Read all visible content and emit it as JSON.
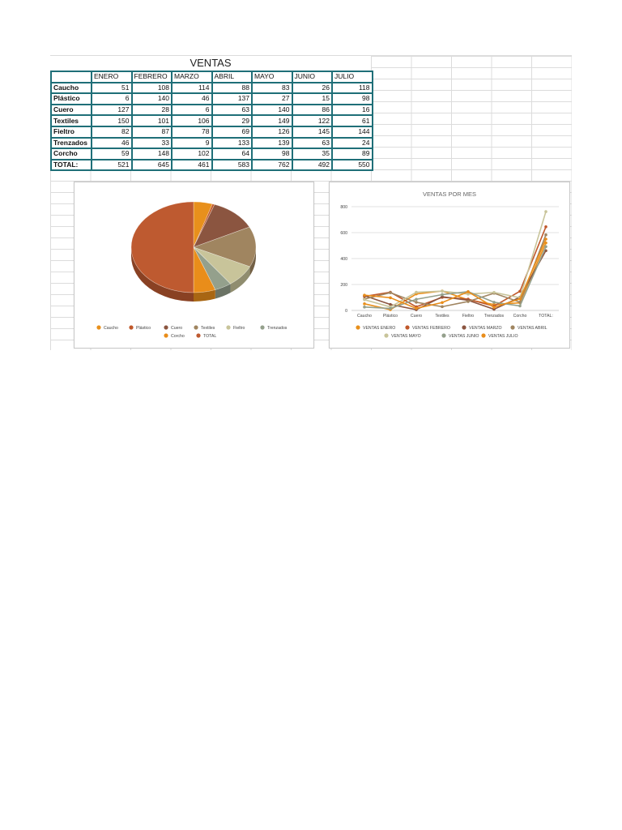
{
  "sheet": {
    "title": "VENTAS",
    "columns": [
      "",
      "ENERO",
      "FEBRERO",
      "MARZO",
      "ABRIL",
      "MAYO",
      "JUNIO",
      "JULIO"
    ],
    "rows": [
      {
        "label": "Caucho",
        "values": [
          51,
          108,
          114,
          88,
          83,
          26,
          118
        ]
      },
      {
        "label": "Plástico",
        "values": [
          6,
          140,
          46,
          137,
          27,
          15,
          98
        ]
      },
      {
        "label": "Cuero",
        "values": [
          127,
          28,
          6,
          63,
          140,
          86,
          16
        ]
      },
      {
        "label": "Textiles",
        "values": [
          150,
          101,
          106,
          29,
          149,
          122,
          61
        ]
      },
      {
        "label": "Fieltro",
        "values": [
          82,
          87,
          78,
          69,
          126,
          145,
          144
        ]
      },
      {
        "label": "Trenzados",
        "values": [
          46,
          33,
          9,
          133,
          139,
          63,
          24
        ]
      },
      {
        "label": "Corcho",
        "values": [
          59,
          148,
          102,
          64,
          98,
          35,
          89
        ]
      },
      {
        "label": "TOTAL:",
        "values": [
          521,
          645,
          461,
          583,
          762,
          492,
          550
        ]
      }
    ]
  },
  "chart_data": [
    {
      "type": "pie",
      "title": "",
      "categories": [
        "Caucho",
        "Plástico",
        "Cuero",
        "Textiles",
        "Fieltro",
        "Trenzados",
        "Corcho",
        "TOTAL"
      ],
      "values": [
        51,
        6,
        127,
        150,
        82,
        46,
        59,
        521
      ],
      "colors": [
        "#e8901c",
        "#c0582a",
        "#8b5540",
        "#a08560",
        "#c8c49a",
        "#94a08c",
        "#e98d1a",
        "#be5a30"
      ],
      "legend": "bottom"
    },
    {
      "type": "line",
      "title": "VENTAS POR MES",
      "categories": [
        "Caucho",
        "Plástico",
        "Cuero",
        "Textiles",
        "Fieltro",
        "Trenzados",
        "Corcho",
        "TOTAL:"
      ],
      "ylim": [
        0,
        800
      ],
      "yticks": [
        0,
        200,
        400,
        600,
        800
      ],
      "grid": true,
      "legend": "bottom",
      "series": [
        {
          "name": "VENTAS ENERO",
          "color": "#e8901c",
          "values": [
            51,
            6,
            127,
            150,
            82,
            46,
            59,
            521
          ]
        },
        {
          "name": "VENTAS FEBRERO",
          "color": "#c0582a",
          "values": [
            108,
            140,
            28,
            101,
            87,
            33,
            148,
            645
          ]
        },
        {
          "name": "VENTAS MARZO",
          "color": "#8b5540",
          "values": [
            114,
            46,
            6,
            106,
            78,
            9,
            102,
            461
          ]
        },
        {
          "name": "VENTAS ABRIL",
          "color": "#a08560",
          "values": [
            88,
            137,
            63,
            29,
            69,
            133,
            64,
            583
          ]
        },
        {
          "name": "VENTAS MAYO",
          "color": "#c8c49a",
          "values": [
            83,
            27,
            140,
            149,
            126,
            139,
            98,
            762
          ]
        },
        {
          "name": "VENTAS JUNIO",
          "color": "#94a08c",
          "values": [
            26,
            15,
            86,
            122,
            145,
            63,
            35,
            492
          ]
        },
        {
          "name": "VENTAS JULIO",
          "color": "#e98d1a",
          "values": [
            118,
            98,
            16,
            61,
            144,
            24,
            89,
            550
          ]
        }
      ]
    }
  ]
}
